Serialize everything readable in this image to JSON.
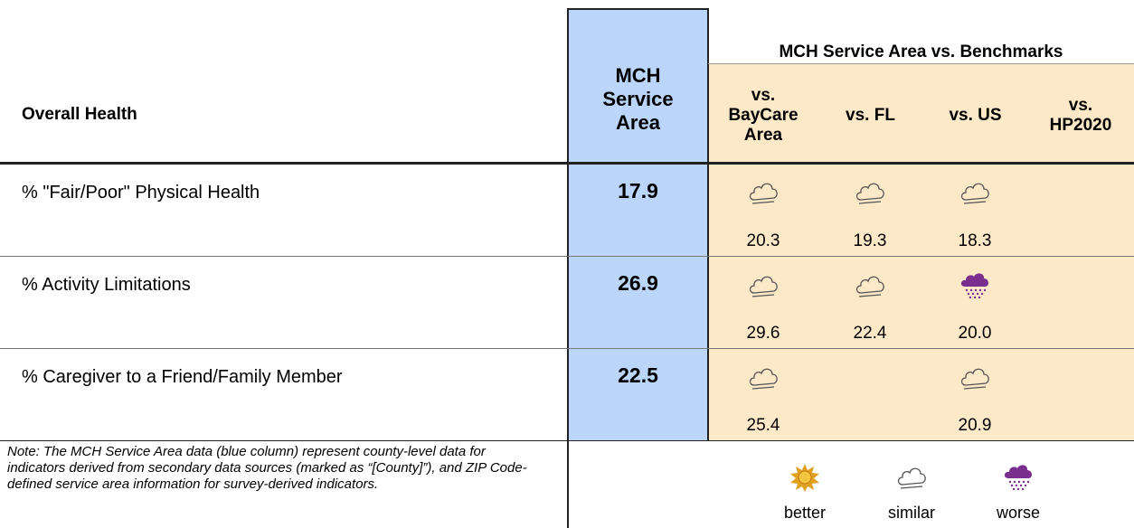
{
  "header": {
    "title": "Overall Health",
    "service_col": "MCH Service Area",
    "group": "MCH Service Area vs. Benchmarks",
    "benchmarks": [
      "vs. BayCare Area",
      "vs. FL",
      "vs. US",
      "vs. HP2020"
    ]
  },
  "rows": [
    {
      "label": "% \"Fair/Poor\" Physical Health",
      "value": "17.9",
      "benchmarks": [
        "20.3",
        "19.3",
        "18.3",
        null
      ]
    },
    {
      "label": "% Activity Limitations",
      "value": "26.9",
      "benchmarks": [
        "29.6",
        "22.4",
        "20.0",
        null
      ]
    },
    {
      "label": "% Caregiver to a Friend/Family Member",
      "value": "22.5",
      "benchmarks": [
        "25.4",
        null,
        "20.9",
        null
      ]
    }
  ],
  "note": "Note: The MCH Service Area data (blue column) represent county-level data for indicators derived from secondary data sources (marked as “[County]”), and ZIP Code-defined service area information for survey-derived indicators.",
  "legend": [
    "better",
    "similar",
    "worse"
  ]
}
